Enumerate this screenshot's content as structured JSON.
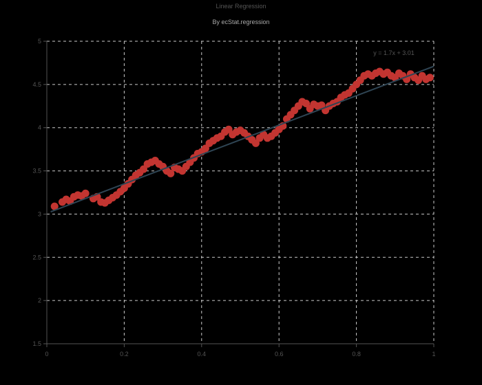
{
  "title": "Linear Regression",
  "subtitle": "By ecStat.regression",
  "chart_data": {
    "type": "scatter",
    "title": "Linear Regression",
    "subtitle": "By ecStat.regression",
    "xlabel": "",
    "ylabel": "",
    "xlim": [
      0,
      1
    ],
    "ylim": [
      1.5,
      5
    ],
    "grid": true,
    "x_ticks": [
      "0",
      "0.2",
      "0.4",
      "0.6",
      "0.8",
      "1"
    ],
    "y_ticks": [
      "1.5",
      "2",
      "2.5",
      "3",
      "3.5",
      "4",
      "4.5",
      "5"
    ],
    "regression": {
      "equation": "y = 1.7x + 3.01",
      "slope": 1.7,
      "intercept": 3.01
    },
    "series": [
      {
        "name": "scatter",
        "color": "#c23531",
        "points": [
          [
            0.02,
            3.09
          ],
          [
            0.04,
            3.14
          ],
          [
            0.05,
            3.17
          ],
          [
            0.06,
            3.15
          ],
          [
            0.07,
            3.2
          ],
          [
            0.08,
            3.22
          ],
          [
            0.09,
            3.21
          ],
          [
            0.1,
            3.24
          ],
          [
            0.12,
            3.18
          ],
          [
            0.13,
            3.2
          ],
          [
            0.14,
            3.14
          ],
          [
            0.15,
            3.13
          ],
          [
            0.16,
            3.16
          ],
          [
            0.17,
            3.19
          ],
          [
            0.18,
            3.22
          ],
          [
            0.19,
            3.26
          ],
          [
            0.2,
            3.3
          ],
          [
            0.21,
            3.35
          ],
          [
            0.22,
            3.4
          ],
          [
            0.23,
            3.45
          ],
          [
            0.24,
            3.48
          ],
          [
            0.25,
            3.52
          ],
          [
            0.26,
            3.58
          ],
          [
            0.27,
            3.6
          ],
          [
            0.28,
            3.62
          ],
          [
            0.29,
            3.58
          ],
          [
            0.3,
            3.55
          ],
          [
            0.31,
            3.5
          ],
          [
            0.32,
            3.47
          ],
          [
            0.33,
            3.54
          ],
          [
            0.34,
            3.52
          ],
          [
            0.35,
            3.5
          ],
          [
            0.36,
            3.55
          ],
          [
            0.37,
            3.6
          ],
          [
            0.38,
            3.65
          ],
          [
            0.39,
            3.7
          ],
          [
            0.4,
            3.72
          ],
          [
            0.41,
            3.76
          ],
          [
            0.42,
            3.82
          ],
          [
            0.43,
            3.85
          ],
          [
            0.44,
            3.88
          ],
          [
            0.45,
            3.9
          ],
          [
            0.46,
            3.95
          ],
          [
            0.47,
            3.98
          ],
          [
            0.48,
            3.92
          ],
          [
            0.49,
            3.95
          ],
          [
            0.5,
            3.97
          ],
          [
            0.51,
            3.94
          ],
          [
            0.52,
            3.9
          ],
          [
            0.53,
            3.86
          ],
          [
            0.54,
            3.82
          ],
          [
            0.55,
            3.88
          ],
          [
            0.56,
            3.92
          ],
          [
            0.57,
            3.88
          ],
          [
            0.58,
            3.9
          ],
          [
            0.59,
            3.94
          ],
          [
            0.6,
            3.98
          ],
          [
            0.61,
            4.02
          ],
          [
            0.62,
            4.1
          ],
          [
            0.63,
            4.15
          ],
          [
            0.64,
            4.2
          ],
          [
            0.65,
            4.25
          ],
          [
            0.66,
            4.3
          ],
          [
            0.67,
            4.28
          ],
          [
            0.68,
            4.22
          ],
          [
            0.69,
            4.27
          ],
          [
            0.7,
            4.25
          ],
          [
            0.71,
            4.26
          ],
          [
            0.72,
            4.2
          ],
          [
            0.73,
            4.25
          ],
          [
            0.74,
            4.28
          ],
          [
            0.75,
            4.3
          ],
          [
            0.76,
            4.35
          ],
          [
            0.77,
            4.38
          ],
          [
            0.78,
            4.4
          ],
          [
            0.79,
            4.45
          ],
          [
            0.8,
            4.5
          ],
          [
            0.81,
            4.55
          ],
          [
            0.82,
            4.6
          ],
          [
            0.83,
            4.62
          ],
          [
            0.84,
            4.6
          ],
          [
            0.85,
            4.63
          ],
          [
            0.86,
            4.65
          ],
          [
            0.87,
            4.62
          ],
          [
            0.88,
            4.64
          ],
          [
            0.89,
            4.6
          ],
          [
            0.9,
            4.58
          ],
          [
            0.91,
            4.63
          ],
          [
            0.92,
            4.6
          ],
          [
            0.93,
            4.56
          ],
          [
            0.94,
            4.62
          ],
          [
            0.95,
            4.58
          ],
          [
            0.96,
            4.55
          ],
          [
            0.97,
            4.6
          ],
          [
            0.98,
            4.56
          ],
          [
            0.99,
            4.58
          ]
        ]
      }
    ]
  }
}
